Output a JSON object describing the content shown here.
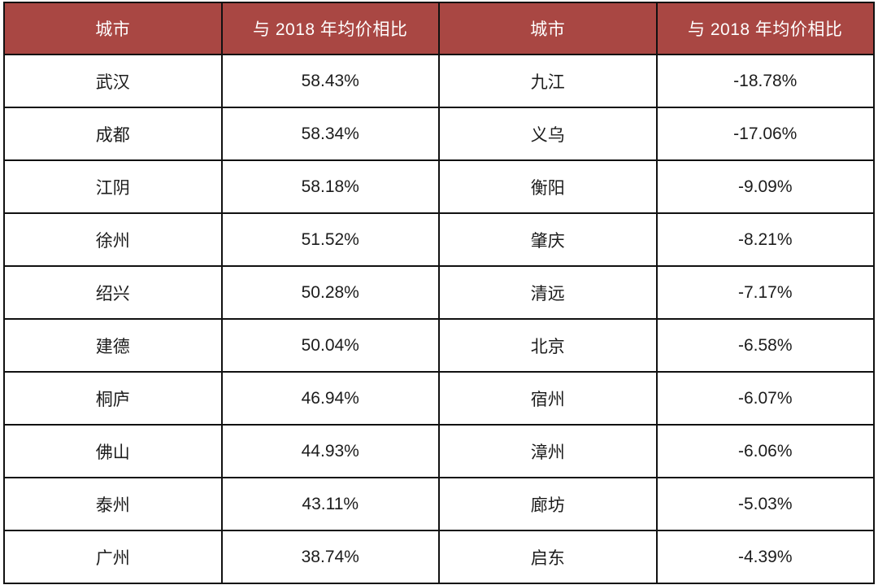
{
  "accent_color": "#A94743",
  "border_color": "#111111",
  "chart_data": {
    "type": "table",
    "title": "",
    "columns": [
      "城市",
      "与 2018 年均价相比",
      "城市",
      "与 2018 年均价相比"
    ],
    "rows": [
      [
        "武汉",
        "58.43%",
        "九江",
        "-18.78%"
      ],
      [
        "成都",
        "58.34%",
        "义乌",
        "-17.06%"
      ],
      [
        "江阴",
        "58.18%",
        "衡阳",
        "-9.09%"
      ],
      [
        "徐州",
        "51.52%",
        "肇庆",
        "-8.21%"
      ],
      [
        "绍兴",
        "50.28%",
        "清远",
        "-7.17%"
      ],
      [
        "建德",
        "50.04%",
        "北京",
        "-6.58%"
      ],
      [
        "桐庐",
        "46.94%",
        "宿州",
        "-6.07%"
      ],
      [
        "佛山",
        "44.93%",
        "漳州",
        "-6.06%"
      ],
      [
        "泰州",
        "43.11%",
        "廊坊",
        "-5.03%"
      ],
      [
        "广州",
        "38.74%",
        "启东",
        "-4.39%"
      ]
    ]
  }
}
